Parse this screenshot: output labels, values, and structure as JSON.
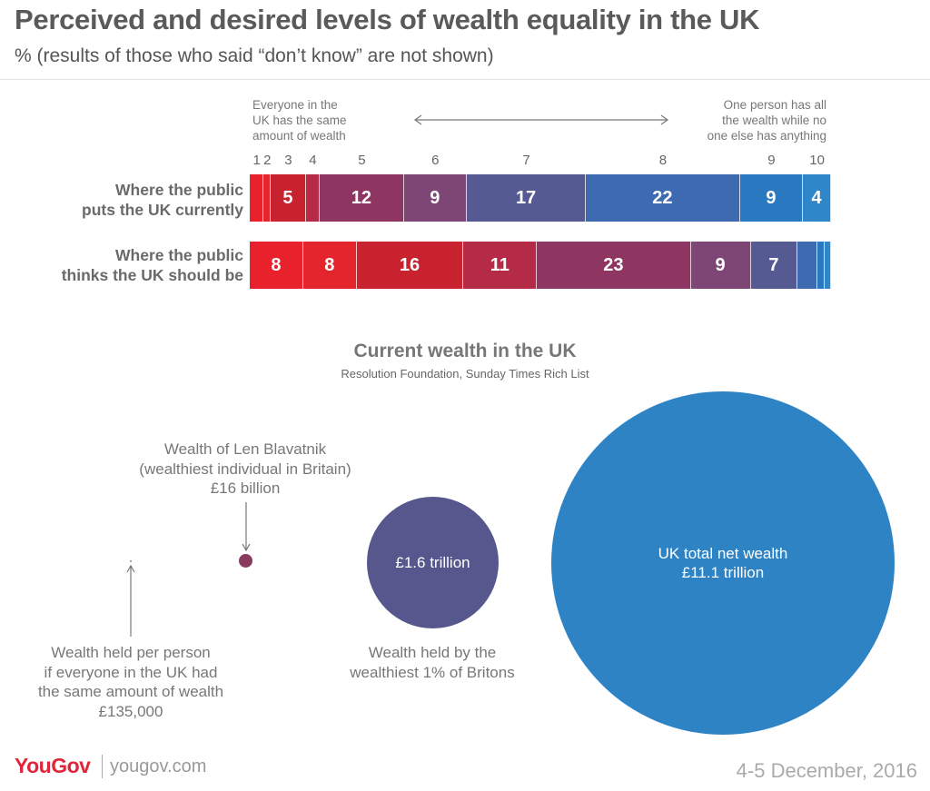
{
  "header": {
    "title": "Perceived and desired levels of wealth equality in the UK",
    "subtitle": "% (results of those who said “don’t know” are not shown)"
  },
  "scale": {
    "left_note": "Everyone in the UK has the same amount of wealth",
    "left_lines": [
      "Everyone in the",
      "UK has the same",
      "amount of wealth"
    ],
    "right_lines": [
      "One person has all",
      "the wealth while no",
      "one else has anything"
    ],
    "points": [
      "1",
      "2",
      "3",
      "4",
      "5",
      "6",
      "7",
      "8",
      "9",
      "10"
    ]
  },
  "chart_data": [
    {
      "type": "bar",
      "orientation": "horizontal-stacked-100",
      "title": "Perceived and desired levels of wealth equality in the UK",
      "categories": [
        "1",
        "2",
        "3",
        "4",
        "5",
        "6",
        "7",
        "8",
        "9",
        "10"
      ],
      "series": [
        {
          "name": "Where the public puts the UK currently",
          "label_lines": [
            "Where the public",
            "puts the UK currently"
          ],
          "values": [
            2,
            1,
            5,
            2,
            12,
            9,
            17,
            22,
            9,
            4
          ],
          "labels": [
            "",
            "",
            "5",
            "",
            "12",
            "9",
            "17",
            "22",
            "9",
            "4"
          ]
        },
        {
          "name": "Where the public thinks the UK should be",
          "label_lines": [
            "Where the public",
            "thinks the UK should be"
          ],
          "values": [
            8,
            8,
            16,
            11,
            23,
            9,
            7,
            3,
            1,
            1
          ],
          "labels": [
            "8",
            "8",
            "16",
            "11",
            "23",
            "9",
            "7",
            "",
            "",
            ""
          ]
        }
      ],
      "colors": [
        "#e8212d",
        "#e4262c",
        "#c8222f",
        "#b42a47",
        "#8e3661",
        "#7d4675",
        "#565a93",
        "#3d6ab0",
        "#2a78bf",
        "#2f86c9"
      ]
    },
    {
      "type": "bubble",
      "title": "Current wealth in the UK",
      "subtitle": "Resolution Foundation, Sunday Times Rich List",
      "bubbles": [
        {
          "name": "Wealth held per person if everyone in the UK had the same amount of wealth",
          "value_gbp": 135000,
          "label": "£135,000",
          "caption_lines": [
            "Wealth held per person",
            "if everyone in the UK had",
            "the same amount of wealth",
            "£135,000"
          ]
        },
        {
          "name": "Wealth of Len Blavatnik (wealthiest individual in Britain)",
          "value_gbp": 16000000000,
          "label": "£16 billion",
          "caption_lines": [
            "Wealth of Len Blavatnik",
            "(wealthiest individual in Britain)",
            "£16 billion"
          ],
          "color": "#8a3a5e"
        },
        {
          "name": "Wealth held by the wealthiest 1% of Britons",
          "value_gbp": 1600000000000,
          "label": "£1.6 trillion",
          "caption_lines": [
            "Wealth held by the",
            "wealthiest 1% of Britons"
          ],
          "color": "#56578c"
        },
        {
          "name": "UK total net wealth",
          "value_gbp": 11100000000000,
          "label_lines": [
            "UK total net wealth",
            "£11.1 trillion"
          ],
          "color": "#2e83c5"
        }
      ]
    }
  ],
  "footer": {
    "brand": "YouGov",
    "site": "yougov.com",
    "date": "4-5 December, 2016"
  }
}
